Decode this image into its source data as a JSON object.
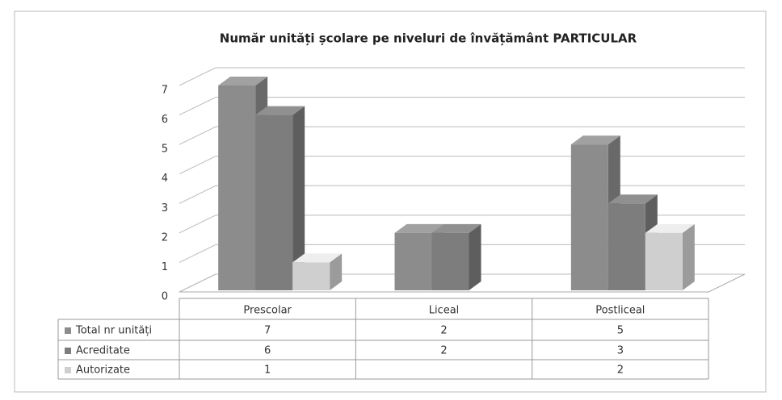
{
  "chart_data": {
    "type": "bar3d",
    "title": "Număr unități școlare pe niveluri de învățământ PARTICULAR",
    "categories": [
      "Prescolar",
      "Liceal",
      "Postliceal"
    ],
    "series": [
      {
        "name": "Total nr unități",
        "color": "#8c8c8c",
        "values": [
          7,
          2,
          5
        ]
      },
      {
        "name": "Acreditate",
        "color": "#7d7d7d",
        "values": [
          6,
          2,
          3
        ]
      },
      {
        "name": "Autorizate",
        "color": "#cfcfcf",
        "values": [
          1,
          null,
          2
        ]
      }
    ],
    "ylim": [
      0,
      7
    ],
    "yticks": [
      0,
      1,
      2,
      3,
      4,
      5,
      6,
      7
    ],
    "grid": true
  }
}
